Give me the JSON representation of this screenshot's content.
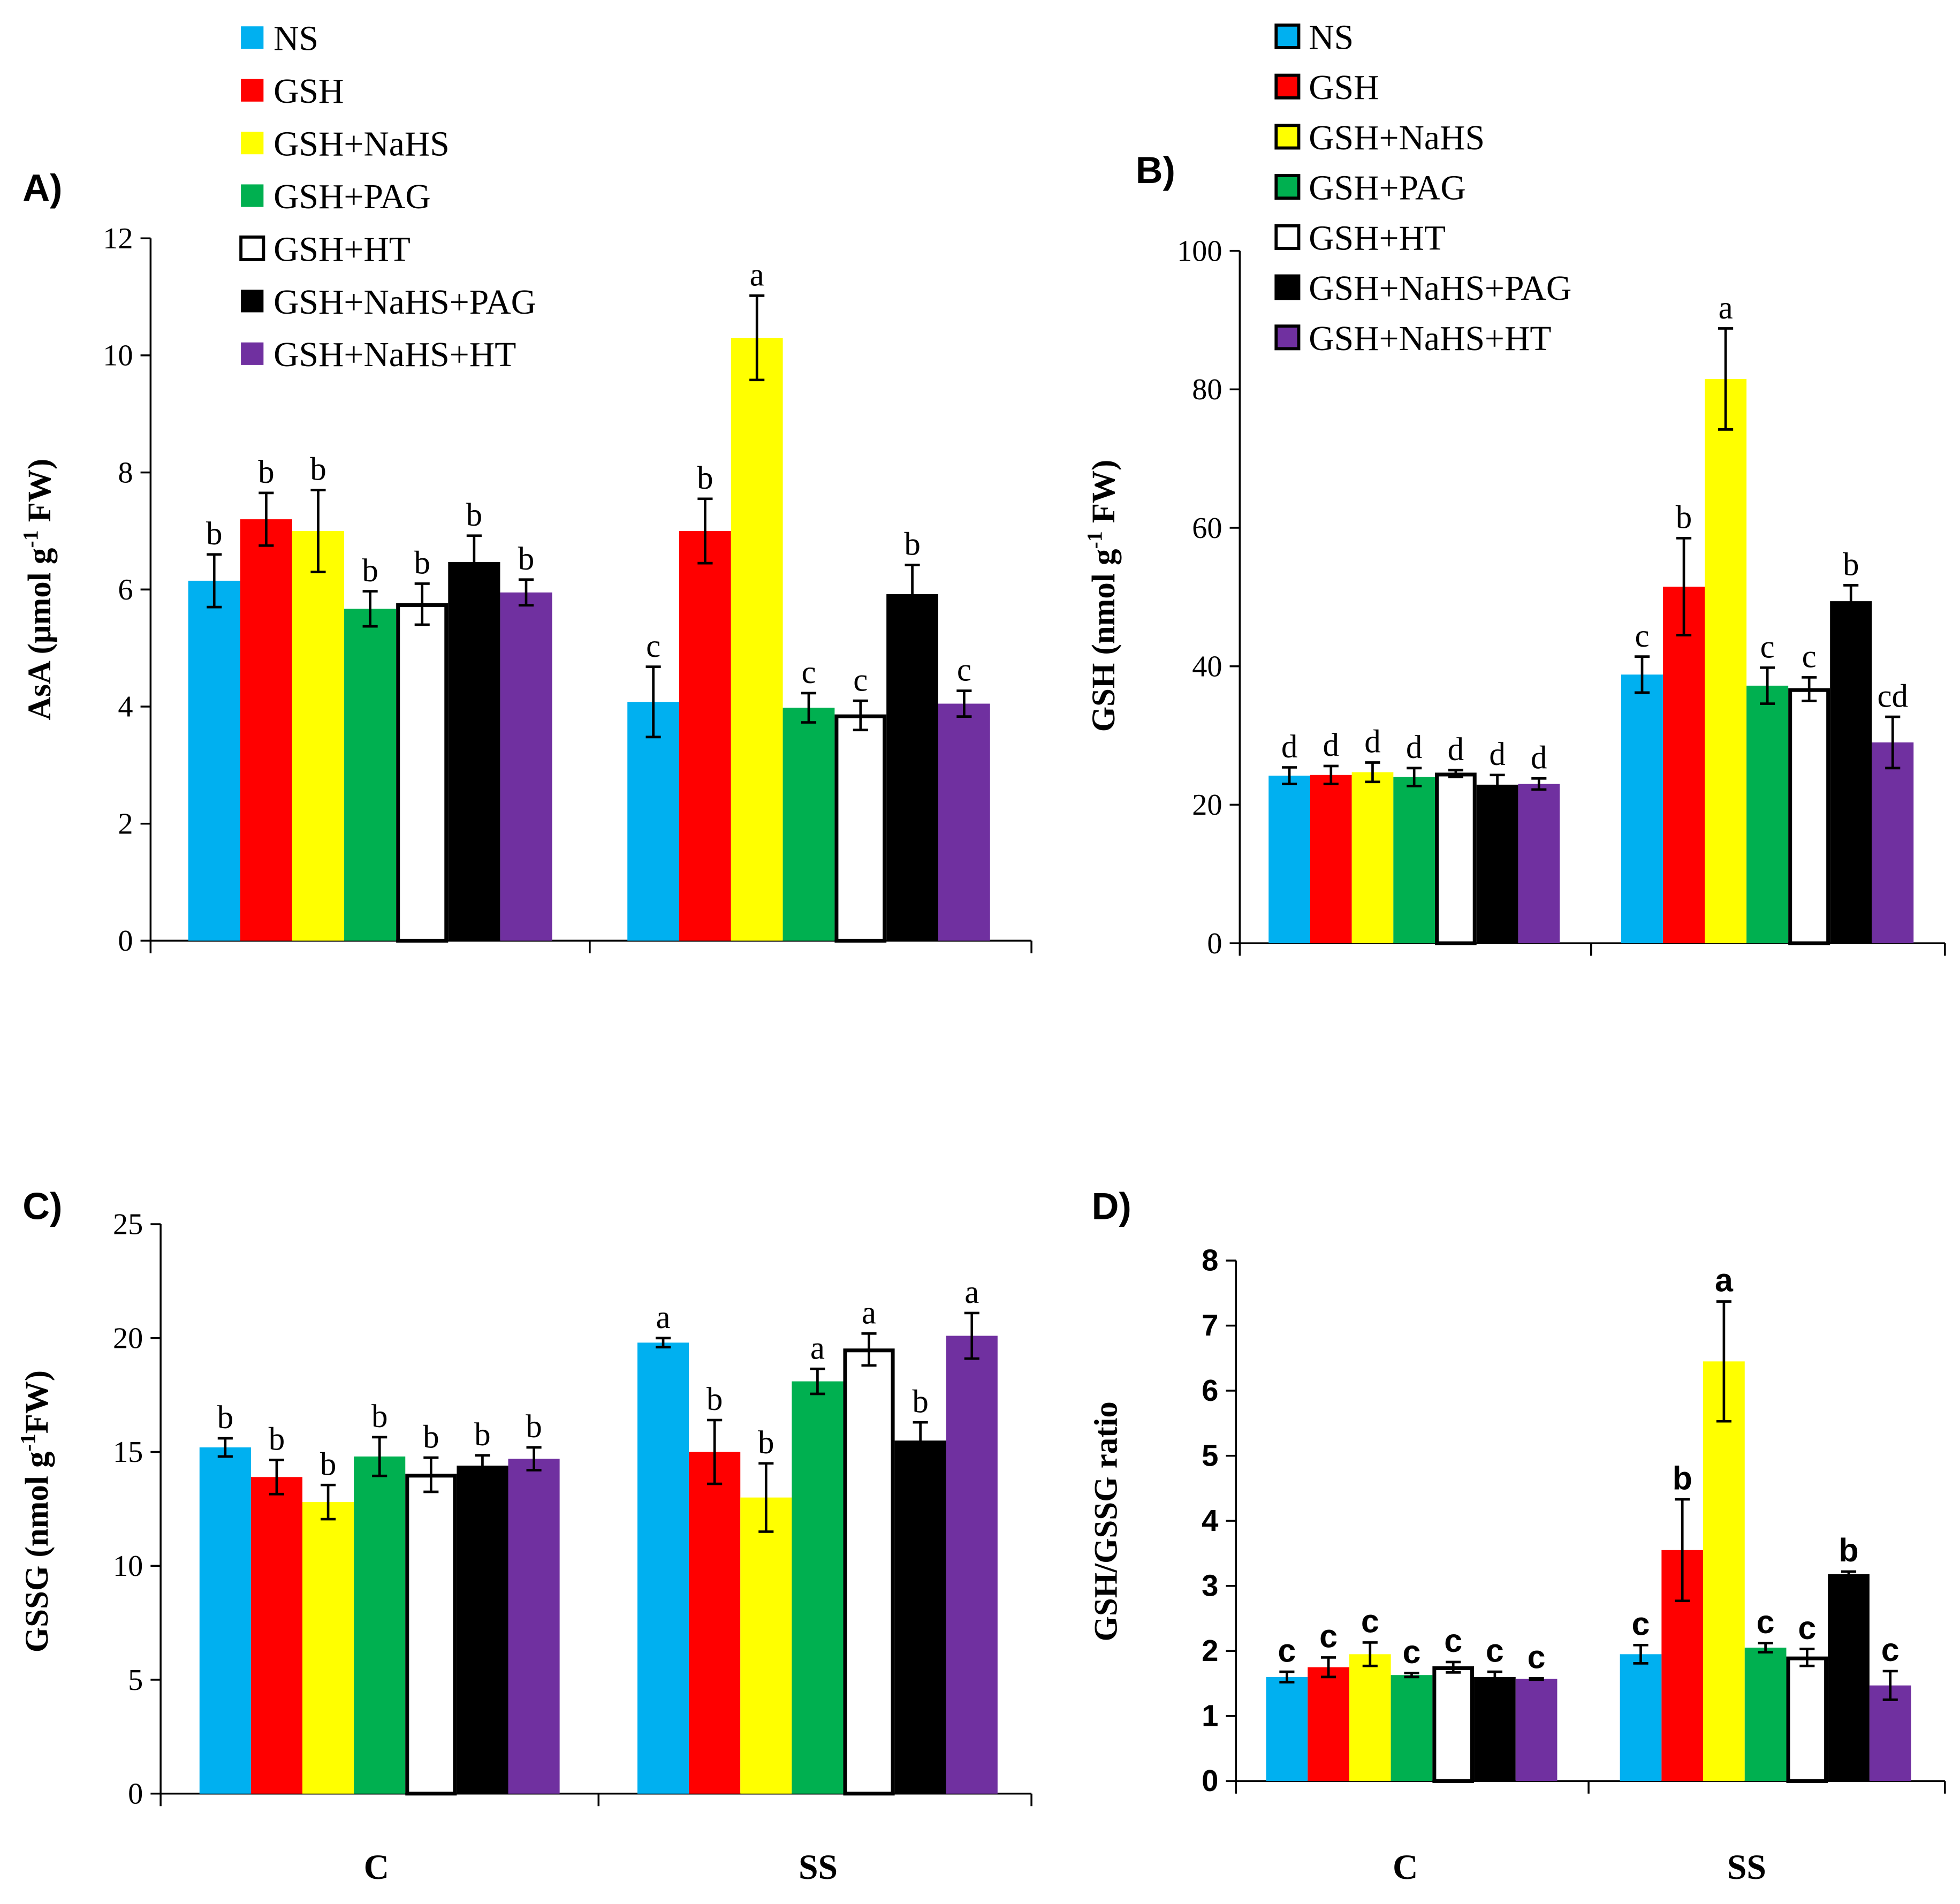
{
  "chart_data": [
    {
      "id": "A",
      "panel_label": "A)",
      "type": "bar",
      "ylabel_prefix": "AsA (μmol g",
      "ylabel_sup": "-1",
      "ylabel_suffix": " FW)",
      "ylim": [
        0,
        12
      ],
      "yticks": [
        "0",
        "2",
        "4",
        "6",
        "8",
        "10",
        "12"
      ],
      "categories": [
        "",
        ""
      ],
      "letters_bold": false,
      "series": [
        {
          "name": "NS",
          "values": [
            6.15,
            4.08
          ],
          "errors": [
            0.45,
            0.6
          ],
          "letters": [
            "b",
            "c"
          ]
        },
        {
          "name": "GSH",
          "values": [
            7.2,
            7.0
          ],
          "errors": [
            0.45,
            0.55
          ],
          "letters": [
            "b",
            "b"
          ]
        },
        {
          "name": "GSH+NaHS",
          "values": [
            7.0,
            10.3
          ],
          "errors": [
            0.7,
            0.72
          ],
          "letters": [
            "b",
            "a"
          ]
        },
        {
          "name": "GSH+PAG",
          "values": [
            5.67,
            3.98
          ],
          "errors": [
            0.3,
            0.25
          ],
          "letters": [
            "b",
            "c"
          ]
        },
        {
          "name": "GSH+HT",
          "values": [
            5.75,
            3.85
          ],
          "errors": [
            0.35,
            0.25
          ],
          "letters": [
            "b",
            "c"
          ]
        },
        {
          "name": "GSH+NaHS+PAG",
          "values": [
            6.47,
            5.92
          ],
          "errors": [
            0.45,
            0.5
          ],
          "letters": [
            "b",
            "b"
          ]
        },
        {
          "name": "GSH+NaHS+HT",
          "values": [
            5.95,
            4.05
          ],
          "errors": [
            0.22,
            0.22
          ],
          "letters": [
            "b",
            "c"
          ]
        }
      ]
    },
    {
      "id": "B",
      "panel_label": "B)",
      "type": "bar",
      "ylabel_prefix": "GSH (nmol g",
      "ylabel_sup": "-1",
      "ylabel_suffix": " FW)",
      "ylim": [
        0,
        100
      ],
      "yticks": [
        "0",
        "20",
        "40",
        "60",
        "80",
        "100"
      ],
      "categories": [
        "",
        ""
      ],
      "letters_bold": false,
      "series": [
        {
          "name": "NS",
          "values": [
            24.2,
            38.8
          ],
          "errors": [
            1.2,
            2.6
          ],
          "letters": [
            "d",
            "c"
          ]
        },
        {
          "name": "GSH",
          "values": [
            24.3,
            51.5
          ],
          "errors": [
            1.3,
            7.0
          ],
          "letters": [
            "d",
            "b"
          ]
        },
        {
          "name": "GSH+NaHS",
          "values": [
            24.7,
            81.5
          ],
          "errors": [
            1.4,
            7.3
          ],
          "letters": [
            "d",
            "a"
          ]
        },
        {
          "name": "GSH+PAG",
          "values": [
            24.0,
            37.2
          ],
          "errors": [
            1.3,
            2.6
          ],
          "letters": [
            "d",
            "c"
          ]
        },
        {
          "name": "GSH+HT",
          "values": [
            24.5,
            36.7
          ],
          "errors": [
            0.5,
            1.7
          ],
          "letters": [
            "d",
            "c"
          ]
        },
        {
          "name": "GSH+NaHS+PAG",
          "values": [
            22.9,
            49.4
          ],
          "errors": [
            1.4,
            2.3
          ],
          "letters": [
            "d",
            "b"
          ]
        },
        {
          "name": "GSH+NaHS+HT",
          "values": [
            23.0,
            29.0
          ],
          "errors": [
            0.8,
            3.7
          ],
          "letters": [
            "d",
            "cd"
          ]
        }
      ]
    },
    {
      "id": "C",
      "panel_label": "C)",
      "type": "bar",
      "ylabel_prefix": "GSSG (nmol g",
      "ylabel_sup": "-1",
      "ylabel_suffix": "FW)",
      "ylim": [
        0,
        25
      ],
      "yticks": [
        "0",
        "5",
        "10",
        "15",
        "20",
        "25"
      ],
      "categories": [
        "C",
        "SS"
      ],
      "letters_bold": false,
      "series": [
        {
          "name": "NS",
          "values": [
            15.2,
            19.8
          ],
          "errors": [
            0.4,
            0.2
          ],
          "letters": [
            "b",
            "a"
          ]
        },
        {
          "name": "GSH",
          "values": [
            13.9,
            15.0
          ],
          "errors": [
            0.75,
            1.4
          ],
          "letters": [
            "b",
            "b"
          ]
        },
        {
          "name": "GSH+NaHS",
          "values": [
            12.8,
            13.0
          ],
          "errors": [
            0.75,
            1.5
          ],
          "letters": [
            "b",
            "b"
          ]
        },
        {
          "name": "GSH+PAG",
          "values": [
            14.8,
            18.1
          ],
          "errors": [
            0.85,
            0.55
          ],
          "letters": [
            "b",
            "a"
          ]
        },
        {
          "name": "GSH+HT",
          "values": [
            14.0,
            19.5
          ],
          "errors": [
            0.75,
            0.7
          ],
          "letters": [
            "b",
            "a"
          ]
        },
        {
          "name": "GSH+NaHS+PAG",
          "values": [
            14.4,
            15.5
          ],
          "errors": [
            0.45,
            0.8
          ],
          "letters": [
            "b",
            "b"
          ]
        },
        {
          "name": "GSH+NaHS+HT",
          "values": [
            14.7,
            20.1
          ],
          "errors": [
            0.5,
            1.0
          ],
          "letters": [
            "b",
            "a"
          ]
        }
      ]
    },
    {
      "id": "D",
      "panel_label": "D)",
      "type": "bar",
      "ylabel_prefix": "GSH/GSSG ratio",
      "ylabel_sup": "",
      "ylabel_suffix": "",
      "ylim": [
        0,
        8
      ],
      "yticks": [
        "0",
        "1",
        "2",
        "3",
        "4",
        "5",
        "6",
        "7",
        "8"
      ],
      "categories": [
        "C",
        "SS"
      ],
      "letters_bold": true,
      "series": [
        {
          "name": "NS",
          "values": [
            1.6,
            1.95
          ],
          "errors": [
            0.08,
            0.14
          ],
          "letters": [
            "c",
            "c"
          ]
        },
        {
          "name": "GSH",
          "values": [
            1.75,
            3.55
          ],
          "errors": [
            0.15,
            0.78
          ],
          "letters": [
            "c",
            "b"
          ]
        },
        {
          "name": "GSH+NaHS",
          "values": [
            1.95,
            6.45
          ],
          "errors": [
            0.18,
            0.92
          ],
          "letters": [
            "c",
            "a"
          ]
        },
        {
          "name": "GSH+PAG",
          "values": [
            1.63,
            2.05
          ],
          "errors": [
            0.03,
            0.07
          ],
          "letters": [
            "c",
            "c"
          ]
        },
        {
          "name": "GSH+HT",
          "values": [
            1.75,
            1.9
          ],
          "errors": [
            0.08,
            0.13
          ],
          "letters": [
            "c",
            "c"
          ]
        },
        {
          "name": "GSH+NaHS+PAG",
          "values": [
            1.6,
            3.18
          ],
          "errors": [
            0.08,
            0.04
          ],
          "letters": [
            "c",
            "b"
          ]
        },
        {
          "name": "GSH+NaHS+HT",
          "values": [
            1.57,
            1.47
          ],
          "errors": [
            0.01,
            0.22
          ],
          "letters": [
            "c",
            "c"
          ]
        }
      ]
    }
  ],
  "legend": {
    "entries": [
      "NS",
      "GSH",
      "GSH+NaHS",
      "GSH+PAG",
      "GSH+HT",
      "GSH+NaHS+PAG",
      "GSH+NaHS+HT"
    ]
  },
  "colors": {
    "NS": "#00b0f0",
    "GSH": "#ff0000",
    "GSH+NaHS": "#ffff00",
    "GSH+PAG": "#00b050",
    "GSH+HT": "#ffffff",
    "GSH+NaHS+PAG": "#000000",
    "GSH+NaHS+HT": "#7030a0"
  }
}
